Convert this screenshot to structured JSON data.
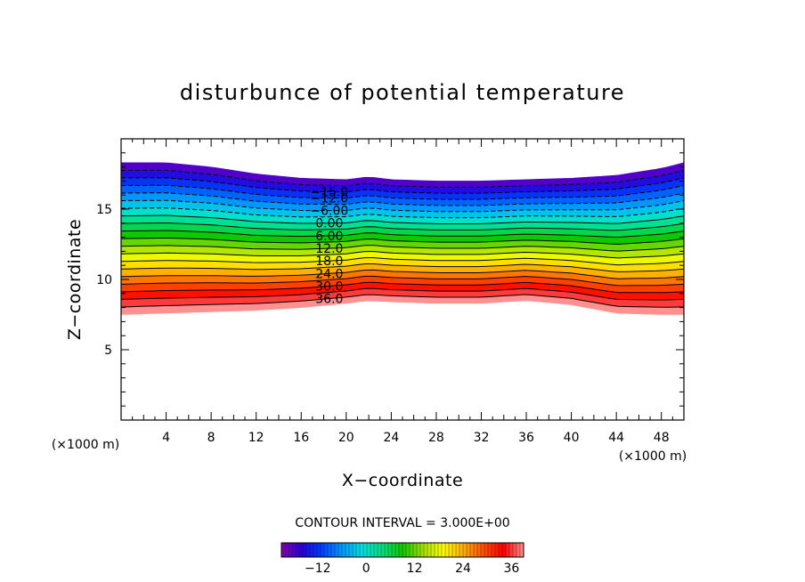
{
  "chart_data": {
    "type": "heatmap",
    "title": "disturbunce of potential temperature",
    "xlabel": "X−coordinate",
    "ylabel": "Z−coordinate",
    "x_unit": "(×1000 m)",
    "y_unit": "(×1000 m)",
    "xlim": [
      0,
      50
    ],
    "ylim": [
      0,
      20
    ],
    "x_ticks": [
      4,
      8,
      12,
      16,
      20,
      24,
      28,
      32,
      36,
      40,
      44,
      48
    ],
    "y_ticks": [
      5,
      10,
      15
    ],
    "contour_interval_text": "CONTOUR INTERVAL = 3.000E+00",
    "contour_interval": 3.0,
    "value_range": [
      -21,
      39
    ],
    "contour_labels": [
      {
        "text": "−15.0",
        "value": -15
      },
      {
        "text": "−12.0",
        "value": -12
      },
      {
        "text": "−6.00",
        "value": -6
      },
      {
        "text": "0.00",
        "value": 0
      },
      {
        "text": "6.00",
        "value": 6
      },
      {
        "text": "12.0",
        "value": 12
      },
      {
        "text": "18.0",
        "value": 18
      },
      {
        "text": "24.0",
        "value": 24
      },
      {
        "text": "30.0",
        "value": 30
      },
      {
        "text": "36.0",
        "value": 36
      }
    ],
    "field_band": {
      "x": [
        0,
        4,
        8,
        12,
        16,
        20,
        22,
        24,
        28,
        32,
        36,
        40,
        44,
        48,
        50
      ],
      "bottom_z": [
        7.5,
        7.6,
        7.7,
        7.8,
        8.0,
        8.3,
        8.5,
        8.4,
        8.3,
        8.3,
        8.5,
        8.2,
        7.6,
        7.5,
        7.5
      ],
      "top_z": [
        18.3,
        18.3,
        18.0,
        17.5,
        17.2,
        17.1,
        17.3,
        17.1,
        17.0,
        17.0,
        17.1,
        17.2,
        17.4,
        17.9,
        18.3
      ]
    },
    "colorbar": {
      "ticks": [
        {
          "label": "−12",
          "value": -12
        },
        {
          "label": "0",
          "value": 0
        },
        {
          "label": "12",
          "value": 12
        },
        {
          "label": "24",
          "value": 24
        },
        {
          "label": "36",
          "value": 36
        }
      ]
    },
    "palette": [
      "#8a00b0",
      "#2a00d8",
      "#0040ff",
      "#0098ff",
      "#00e0e0",
      "#00e080",
      "#10c800",
      "#a0e000",
      "#ffff00",
      "#ffb000",
      "#ff5000",
      "#ff0000",
      "#ff9090"
    ],
    "grid": false
  }
}
